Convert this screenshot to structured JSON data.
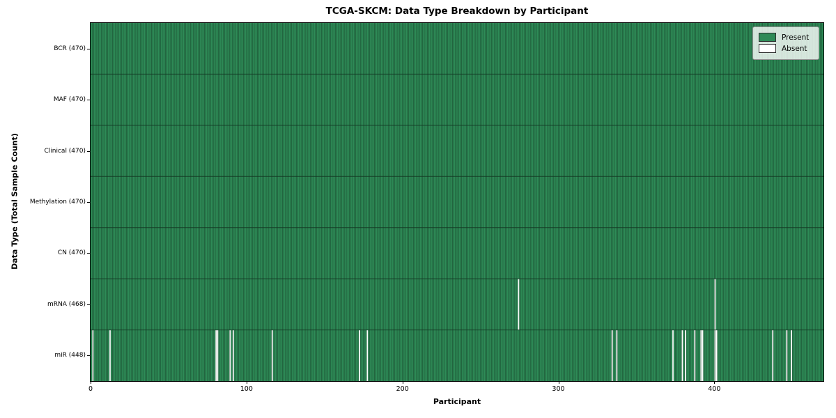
{
  "chart_data": {
    "type": "heatmap",
    "title": "TCGA-SKCM: Data Type Breakdown by Participant",
    "xlabel": "Participant",
    "ylabel": "Data Type (Total Sample Count)",
    "n_participants": 470,
    "x_ticks": [
      0,
      100,
      200,
      300,
      400
    ],
    "x_range": [
      0,
      470
    ],
    "grid": false,
    "legend_position": "upper right",
    "present_color": "#2e8b57",
    "absent_color": "#ffffff",
    "cell_edge_color": "#143823",
    "legend": [
      {
        "label": "Present",
        "color": "#2e8b57"
      },
      {
        "label": "Absent",
        "color": "#ffffff"
      }
    ],
    "rows": [
      {
        "data_type": "BCR",
        "label": "BCR (470)",
        "present_count": 470,
        "absent_participants": []
      },
      {
        "data_type": "MAF",
        "label": "MAF (470)",
        "present_count": 470,
        "absent_participants": []
      },
      {
        "data_type": "Clinical",
        "label": "Clinical (470)",
        "present_count": 470,
        "absent_participants": []
      },
      {
        "data_type": "Methylation",
        "label": "Methylation (470)",
        "present_count": 470,
        "absent_participants": []
      },
      {
        "data_type": "CN",
        "label": "CN (470)",
        "present_count": 470,
        "absent_participants": []
      },
      {
        "data_type": "mRNA",
        "label": "mRNA (468)",
        "present_count": 468,
        "absent_participants": [
          274,
          400
        ]
      },
      {
        "data_type": "miR",
        "label": "miR (448)",
        "present_count": 448,
        "absent_participants": [
          1,
          12,
          80,
          81,
          89,
          91,
          116,
          172,
          177,
          334,
          337,
          373,
          379,
          381,
          387,
          391,
          392,
          400,
          401,
          437,
          446,
          449
        ]
      }
    ]
  }
}
